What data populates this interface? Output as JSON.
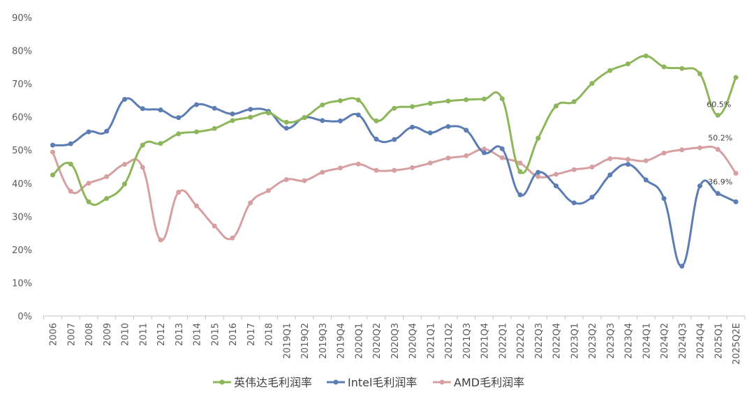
{
  "chart_data": {
    "type": "line",
    "title": "",
    "xlabel": "",
    "ylabel": "",
    "ylim": [
      0,
      90
    ],
    "y_tick_labels": [
      "0%",
      "10%",
      "20%",
      "30%",
      "40%",
      "50%",
      "60%",
      "70%",
      "80%",
      "90%"
    ],
    "grid": false,
    "legend_position": "bottom",
    "categories": [
      "2006",
      "2007",
      "2008",
      "2009",
      "2010",
      "2011",
      "2012",
      "2013",
      "2014",
      "2015",
      "2016",
      "2017",
      "2018",
      "2019Q1",
      "2019Q2",
      "2019Q3",
      "2019Q4",
      "2020Q1",
      "2020Q2",
      "2020Q3",
      "2020Q4",
      "2021Q1",
      "2021Q2",
      "2021Q3",
      "2021Q4",
      "2022Q1",
      "2022Q2",
      "2022Q3",
      "2022Q4",
      "2023Q1",
      "2023Q2",
      "2023Q3",
      "2023Q4",
      "2024Q1",
      "2024Q2",
      "2024Q3",
      "2024Q4",
      "2025Q1",
      "2025Q2E"
    ],
    "series": [
      {
        "name": "英伟达毛利润率",
        "color": "#8DB55A",
        "values": [
          42.5,
          45.8,
          34.4,
          35.4,
          39.8,
          51.5,
          52.0,
          54.9,
          55.5,
          56.5,
          58.9,
          59.9,
          61.2,
          58.4,
          59.8,
          63.6,
          64.9,
          65.1,
          58.8,
          62.6,
          63.1,
          64.1,
          64.8,
          65.2,
          65.4,
          65.5,
          43.5,
          53.6,
          63.3,
          64.6,
          70.1,
          74.0,
          76.0,
          78.4,
          75.1,
          74.6,
          73.0,
          60.5,
          71.9
        ]
      },
      {
        "name": "Intel毛利润率",
        "color": "#5B7DB3",
        "values": [
          51.5,
          51.9,
          55.5,
          55.7,
          65.3,
          62.5,
          62.1,
          59.8,
          63.7,
          62.6,
          60.9,
          62.3,
          61.7,
          56.6,
          59.8,
          58.9,
          58.8,
          60.6,
          53.3,
          53.2,
          56.9,
          55.2,
          57.1,
          56.0,
          49.2,
          50.4,
          36.5,
          43.3,
          39.2,
          34.1,
          35.8,
          42.5,
          45.7,
          41.0,
          35.4,
          15.0,
          39.2,
          36.9,
          34.4
        ]
      },
      {
        "name": "AMD毛利润率",
        "color": "#D6A0A2",
        "values": [
          49.4,
          37.6,
          40.0,
          42.0,
          45.7,
          44.8,
          22.9,
          37.3,
          33.2,
          27.1,
          23.5,
          34.1,
          37.8,
          41.1,
          40.8,
          43.3,
          44.6,
          45.8,
          43.9,
          43.9,
          44.7,
          46.1,
          47.6,
          48.3,
          50.3,
          47.7,
          46.1,
          42.0,
          42.7,
          44.1,
          44.9,
          47.4,
          47.2,
          46.8,
          49.1,
          50.1,
          50.7,
          50.2,
          43.0
        ]
      }
    ],
    "annotations": [
      {
        "text": "60.5%",
        "series": 0,
        "category": "2025Q1"
      },
      {
        "text": "50.2%",
        "series": 2,
        "category": "2025Q1"
      },
      {
        "text": "36.9%",
        "series": 1,
        "category": "2025Q1"
      }
    ]
  }
}
